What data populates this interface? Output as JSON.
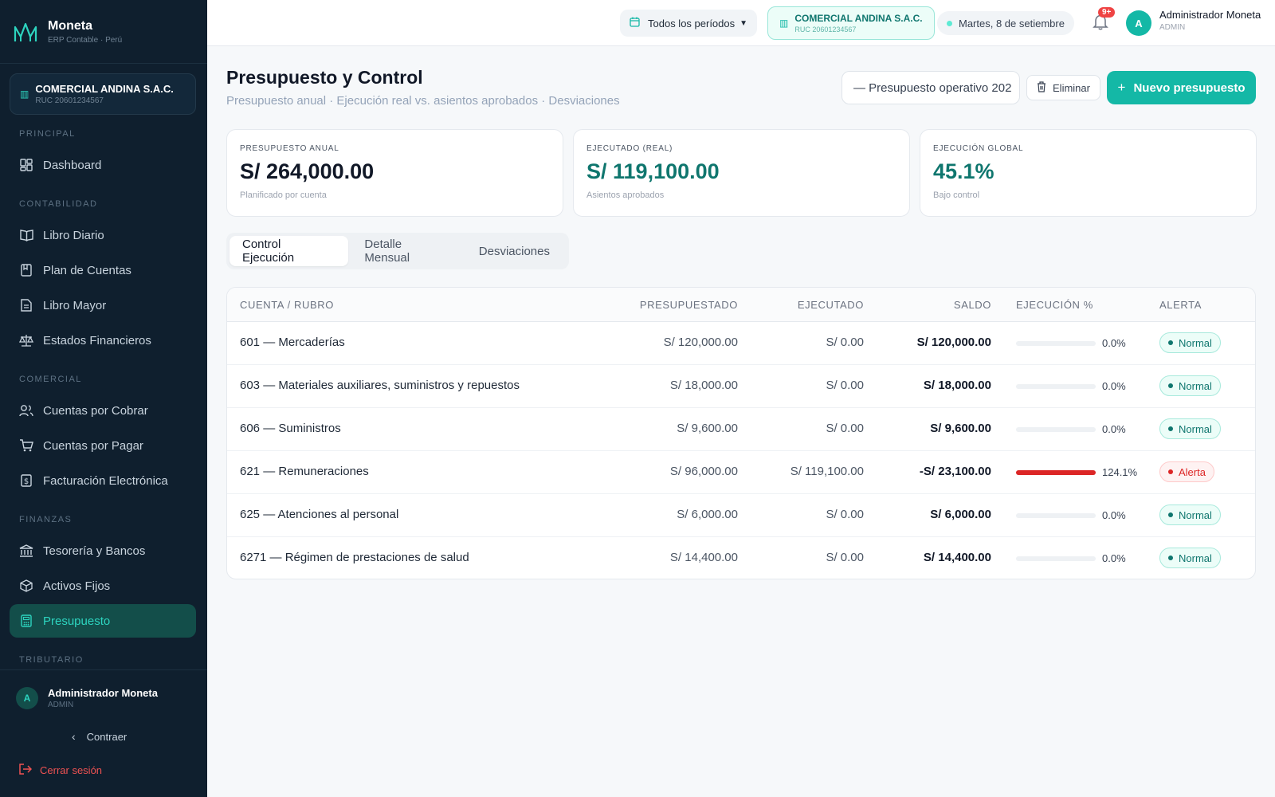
{
  "brand": {
    "name": "Moneta",
    "tagline": "ERP Contable · Perú"
  },
  "sidebar": {
    "company": {
      "name": "COMERCIAL ANDINA S.A.C.",
      "ruc": "RUC 20601234567"
    },
    "sections": {
      "principal": "PRINCIPAL",
      "contabilidad": "CONTABILIDAD",
      "comercial": "COMERCIAL",
      "finanzas": "FINANZAS",
      "tributario": "TRIBUTARIO"
    },
    "items": {
      "dashboard": "Dashboard",
      "libro_diario": "Libro Diario",
      "plan_cuentas": "Plan de Cuentas",
      "libro_mayor": "Libro Mayor",
      "estados_financieros": "Estados Financieros",
      "cuentas_cobrar": "Cuentas por Cobrar",
      "cuentas_pagar": "Cuentas por Pagar",
      "facturacion": "Facturación Electrónica",
      "tesoreria": "Tesorería y Bancos",
      "activos_fijos": "Activos Fijos",
      "presupuesto": "Presupuesto"
    },
    "user": {
      "initial": "A",
      "name": "Administrador Moneta",
      "role": "ADMIN"
    },
    "collapse_label": "Contraer",
    "logout_label": "Cerrar sesión"
  },
  "topbar": {
    "period": "Todos los períodos",
    "company": {
      "name": "COMERCIAL ANDINA S.A.C.",
      "ruc": "RUC 20601234567"
    },
    "date": "Martes, 8 de setiembre",
    "notifications": "9+",
    "user": {
      "initial": "A",
      "name": "Administrador Moneta",
      "role": "ADMIN"
    }
  },
  "page": {
    "title": "Presupuesto y Control",
    "subtitle": "Presupuesto anual · Ejecución real vs. asientos aprobados · Desviaciones",
    "budget_select": "— Presupuesto operativo 202",
    "delete_label": "Eliminar",
    "new_label": "Nuevo presupuesto"
  },
  "kpis": [
    {
      "label": "PRESUPUESTO ANUAL",
      "value": "S/ 264,000.00",
      "hint": "Planificado por cuenta"
    },
    {
      "label": "EJECUTADO (REAL)",
      "value": "S/ 119,100.00",
      "hint": "Asientos aprobados"
    },
    {
      "label": "EJECUCIÓN GLOBAL",
      "value": "45.1%",
      "hint": "Bajo control"
    }
  ],
  "tabs": [
    "Control Ejecución",
    "Detalle Mensual",
    "Desviaciones"
  ],
  "table": {
    "headers": {
      "account": "CUENTA / RUBRO",
      "budgeted": "PRESUPUESTADO",
      "executed": "EJECUTADO",
      "balance": "SALDO",
      "execution": "EJECUCIÓN %",
      "alert": "ALERTA"
    },
    "rows": [
      {
        "account": "601 — Mercaderías",
        "budgeted": "S/ 120,000.00",
        "executed": "S/ 0.00",
        "balance": "S/ 120,000.00",
        "pct_label": "0.0%",
        "pct": 0,
        "alert": "Normal"
      },
      {
        "account": "603 — Materiales auxiliares, suministros y repuestos",
        "budgeted": "S/ 18,000.00",
        "executed": "S/ 0.00",
        "balance": "S/ 18,000.00",
        "pct_label": "0.0%",
        "pct": 0,
        "alert": "Normal"
      },
      {
        "account": "606 — Suministros",
        "budgeted": "S/ 9,600.00",
        "executed": "S/ 0.00",
        "balance": "S/ 9,600.00",
        "pct_label": "0.0%",
        "pct": 0,
        "alert": "Normal"
      },
      {
        "account": "621 — Remuneraciones",
        "budgeted": "S/ 96,000.00",
        "executed": "S/ 119,100.00",
        "balance": "-S/ 23,100.00",
        "pct_label": "124.1%",
        "pct": 124.1,
        "alert": "Alerta"
      },
      {
        "account": "625 — Atenciones al personal",
        "budgeted": "S/ 6,000.00",
        "executed": "S/ 0.00",
        "balance": "S/ 6,000.00",
        "pct_label": "0.0%",
        "pct": 0,
        "alert": "Normal"
      },
      {
        "account": "6271 — Régimen de prestaciones de salud",
        "budgeted": "S/ 14,400.00",
        "executed": "S/ 0.00",
        "balance": "S/ 14,400.00",
        "pct_label": "0.0%",
        "pct": 0,
        "alert": "Normal"
      }
    ]
  },
  "colors": {
    "accent": "#14b8a6",
    "sidebar_bg": "#0f1f2e",
    "alert": "#dc2626"
  }
}
